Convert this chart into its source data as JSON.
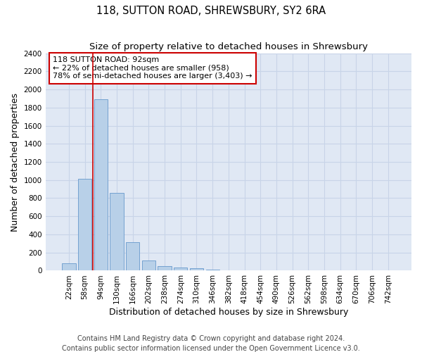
{
  "title": "118, SUTTON ROAD, SHREWSBURY, SY2 6RA",
  "subtitle": "Size of property relative to detached houses in Shrewsbury",
  "xlabel": "Distribution of detached houses by size in Shrewsbury",
  "ylabel": "Number of detached properties",
  "bin_labels": [
    "22sqm",
    "58sqm",
    "94sqm",
    "130sqm",
    "166sqm",
    "202sqm",
    "238sqm",
    "274sqm",
    "310sqm",
    "346sqm",
    "382sqm",
    "418sqm",
    "454sqm",
    "490sqm",
    "526sqm",
    "562sqm",
    "598sqm",
    "634sqm",
    "670sqm",
    "706sqm",
    "742sqm"
  ],
  "bar_values": [
    85,
    1010,
    1895,
    860,
    315,
    115,
    48,
    38,
    28,
    10,
    0,
    0,
    0,
    0,
    0,
    0,
    0,
    0,
    0,
    0,
    0
  ],
  "bar_color": "#b8d0e8",
  "bar_edge_color": "#6699cc",
  "property_line_x": 1.5,
  "annotation_text": "118 SUTTON ROAD: 92sqm\n← 22% of detached houses are smaller (958)\n78% of semi-detached houses are larger (3,403) →",
  "annotation_box_color": "#ffffff",
  "annotation_box_edge_color": "#cc0000",
  "ylim": [
    0,
    2400
  ],
  "yticks": [
    0,
    200,
    400,
    600,
    800,
    1000,
    1200,
    1400,
    1600,
    1800,
    2000,
    2200,
    2400
  ],
  "grid_color": "#c8d4e8",
  "background_color": "#e0e8f4",
  "footer_line1": "Contains HM Land Registry data © Crown copyright and database right 2024.",
  "footer_line2": "Contains public sector information licensed under the Open Government Licence v3.0.",
  "property_line_color": "#cc0000",
  "title_fontsize": 10.5,
  "subtitle_fontsize": 9.5,
  "axis_label_fontsize": 9,
  "tick_fontsize": 7.5,
  "annotation_fontsize": 8,
  "footer_fontsize": 7
}
